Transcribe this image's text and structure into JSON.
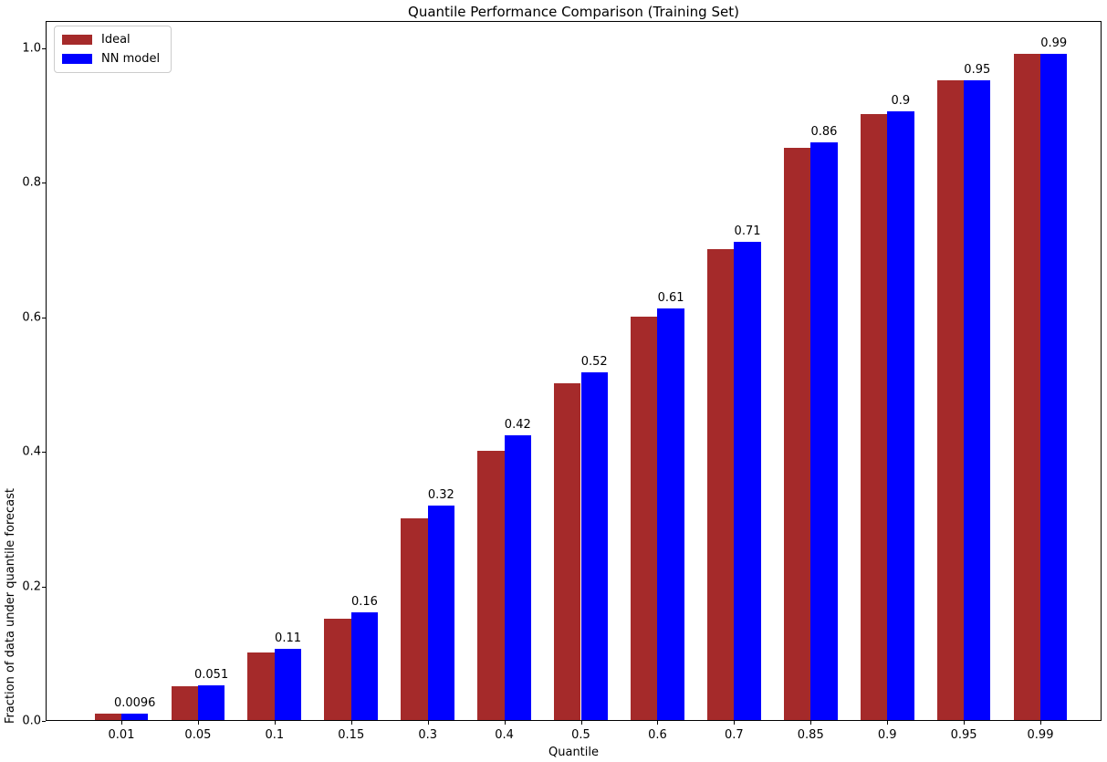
{
  "chart_data": {
    "type": "bar",
    "title": "Quantile Performance Comparison (Training Set)",
    "xlabel": "Quantile",
    "ylabel": "Fraction of data under quantile forecast",
    "categories": [
      "0.01",
      "0.05",
      "0.1",
      "0.15",
      "0.3",
      "0.4",
      "0.5",
      "0.6",
      "0.7",
      "0.85",
      "0.9",
      "0.95",
      "0.99"
    ],
    "series": [
      {
        "name": "Ideal",
        "color": "#A52A2A",
        "values": [
          0.01,
          0.05,
          0.1,
          0.15,
          0.3,
          0.4,
          0.5,
          0.6,
          0.7,
          0.85,
          0.9,
          0.95,
          0.99
        ]
      },
      {
        "name": "NN model",
        "color": "#0000FF",
        "values": [
          0.0096,
          0.051,
          0.106,
          0.16,
          0.318,
          0.423,
          0.516,
          0.612,
          0.71,
          0.859,
          0.904,
          0.95,
          0.99
        ]
      }
    ],
    "bar_labels": [
      "0.0096",
      "0.051",
      "0.11",
      "0.16",
      "0.32",
      "0.42",
      "0.52",
      "0.61",
      "0.71",
      "0.86",
      "0.9",
      "0.95",
      "0.99"
    ],
    "yticks": [
      "0.0",
      "0.2",
      "0.4",
      "0.6",
      "0.8",
      "1.0"
    ],
    "ylim": [
      0,
      1.04
    ],
    "grid": false,
    "legend_position": "upper left",
    "colors": {
      "background": "#ffffff",
      "axis": "#000000",
      "legend_border": "#cccccc"
    }
  }
}
